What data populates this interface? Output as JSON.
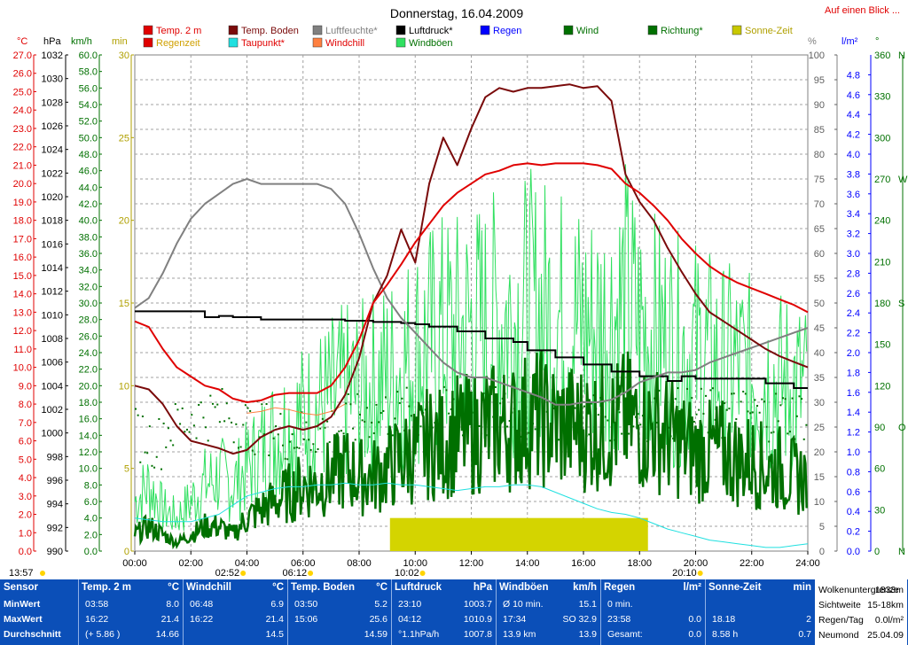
{
  "page": {
    "title": "Donnerstag, 16.04.2009",
    "link": "Auf einen Blick ..."
  },
  "legend": [
    {
      "label": "Temp. 2 m",
      "color": "#e00000",
      "text_color": "#e00000"
    },
    {
      "label": "Temp. Boden",
      "color": "#7a0a0a",
      "text_color": "#7a0a0a"
    },
    {
      "label": "Luftfeuchte*",
      "color": "#808080",
      "text_color": "#808080"
    },
    {
      "label": "Luftdruck*",
      "color": "#000000",
      "text_color": "#000000"
    },
    {
      "label": "Regen",
      "color": "#0000ff",
      "text_color": "#0000ff"
    },
    {
      "label": "Wind",
      "color": "#007000",
      "text_color": "#007000"
    },
    {
      "label": "Richtung*",
      "color": "#007000",
      "text_color": "#007000"
    },
    {
      "label": "Sonne-Zeit",
      "color": "#c8c800",
      "text_color": "#b0a000"
    },
    {
      "label": "Regenzeit",
      "color": "#e00000",
      "text_color": "#d0a000"
    },
    {
      "label": "Taupunkt*",
      "color": "#20e0e0",
      "text_color": "#e00000"
    },
    {
      "label": "Windchill",
      "color": "#ff8040",
      "text_color": "#e00000"
    },
    {
      "label": "Windböen",
      "color": "#30e060",
      "text_color": "#007000"
    }
  ],
  "axis_units": {
    "temp": "°C",
    "press": "hPa",
    "wind": "km/h",
    "min": "min",
    "pct": "%",
    "rain": "l/m²",
    "dir": "°"
  },
  "chart_data": {
    "type": "line",
    "x_tick_labels": [
      "00:00",
      "02:00",
      "04:00",
      "06:00",
      "08:00",
      "10:00",
      "12:00",
      "14:00",
      "16:00",
      "18:00",
      "20:00",
      "22:00",
      "24:00"
    ],
    "x_hours": [
      0,
      0.5,
      1,
      1.5,
      2,
      2.5,
      3,
      3.5,
      4,
      4.5,
      5,
      5.5,
      6,
      6.5,
      7,
      7.5,
      8,
      8.5,
      9,
      9.5,
      10,
      10.5,
      11,
      11.5,
      12,
      12.5,
      13,
      13.5,
      14,
      14.5,
      15,
      15.5,
      16,
      16.5,
      17,
      17.5,
      18,
      18.5,
      19,
      19.5,
      20,
      20.5,
      21,
      21.5,
      22,
      22.5,
      23,
      23.5,
      24
    ],
    "axes": {
      "temp_c": {
        "min": 0,
        "max": 27,
        "ticks": [
          "27.0",
          "26.0",
          "25.0",
          "24.0",
          "23.0",
          "22.0",
          "21.0",
          "20.0",
          "19.0",
          "18.0",
          "17.0",
          "16.0",
          "15.0",
          "14.0",
          "13.0",
          "12.0",
          "11.0",
          "10.0",
          "9.0",
          "8.0",
          "7.0",
          "6.0",
          "5.0",
          "4.0",
          "3.0",
          "2.0",
          "1.0",
          "0.0"
        ]
      },
      "pressure_hpa": {
        "min": 990,
        "max": 1032,
        "ticks": [
          "1032",
          "1030",
          "1028",
          "1026",
          "1024",
          "1022",
          "1020",
          "1018",
          "1016",
          "1014",
          "1012",
          "1010",
          "1008",
          "1006",
          "1004",
          "1002",
          "1000",
          "998",
          "996",
          "994",
          "992",
          "990"
        ]
      },
      "wind_kmh": {
        "min": 0,
        "max": 60,
        "ticks": [
          "60.0",
          "58.0",
          "56.0",
          "54.0",
          "52.0",
          "50.0",
          "48.0",
          "46.0",
          "44.0",
          "42.0",
          "40.0",
          "38.0",
          "36.0",
          "34.0",
          "32.0",
          "30.0",
          "28.0",
          "26.0",
          "24.0",
          "22.0",
          "20.0",
          "18.0",
          "16.0",
          "14.0",
          "12.0",
          "10.0",
          "8.0",
          "6.0",
          "4.0",
          "2.0",
          "0.0"
        ]
      },
      "minutes": {
        "min": 0,
        "max": 30,
        "ticks": [
          "30",
          "25",
          "20",
          "15",
          "10",
          "5",
          "0"
        ]
      },
      "humidity_pct": {
        "min": 0,
        "max": 100,
        "ticks": [
          "100",
          "95",
          "90",
          "85",
          "80",
          "75",
          "70",
          "65",
          "60",
          "55",
          "50",
          "45",
          "40",
          "35",
          "30",
          "25",
          "20",
          "15",
          "10",
          "5",
          "0"
        ]
      },
      "rain_lm2": {
        "min": 0,
        "max": 5,
        "ticks": [
          "4.8",
          "4.6",
          "4.4",
          "4.2",
          "4.0",
          "3.8",
          "3.6",
          "3.4",
          "3.2",
          "3.0",
          "2.8",
          "2.6",
          "2.4",
          "2.2",
          "2.0",
          "1.8",
          "1.6",
          "1.4",
          "1.2",
          "1.0",
          "0.8",
          "0.6",
          "0.4",
          "0.2",
          "0.0"
        ]
      },
      "direction_deg": {
        "min": 0,
        "max": 360,
        "ticks": [
          "360",
          "330",
          "300",
          "270",
          "240",
          "210",
          "180",
          "150",
          "120",
          "90",
          "60",
          "30",
          "0"
        ],
        "compass": [
          "N",
          "",
          "",
          "W",
          "",
          "",
          "S",
          "",
          "",
          "O",
          "",
          "",
          "N"
        ]
      }
    },
    "series": [
      {
        "name": "Temp. 2 m",
        "axis": "temp_c",
        "values": [
          12.5,
          12.2,
          11.0,
          10.0,
          9.5,
          9.0,
          8.8,
          8.3,
          8.1,
          8.2,
          8.5,
          8.6,
          8.6,
          8.6,
          9.0,
          10.0,
          11.5,
          13.5,
          14.5,
          15.6,
          16.8,
          17.8,
          18.8,
          19.5,
          20.0,
          20.5,
          20.7,
          21.0,
          21.1,
          21.0,
          21.1,
          21.1,
          21.1,
          21.0,
          20.8,
          20.0,
          19.5,
          18.8,
          18.0,
          17.0,
          16.2,
          15.5,
          15.0,
          14.6,
          14.3,
          14.0,
          13.7,
          13.4,
          13.0
        ]
      },
      {
        "name": "Temp. Boden",
        "axis": "temp_c",
        "values": [
          9.0,
          8.8,
          8.0,
          6.8,
          6.0,
          5.8,
          5.6,
          5.3,
          5.5,
          6.2,
          6.6,
          6.8,
          6.6,
          6.8,
          7.3,
          8.5,
          10.5,
          13.5,
          15.0,
          17.5,
          15.7,
          20.0,
          22.5,
          21.0,
          23.0,
          24.7,
          25.2,
          25.0,
          25.2,
          25.2,
          25.3,
          25.4,
          25.2,
          25.3,
          24.5,
          20.5,
          19.0,
          18.0,
          16.5,
          15.2,
          14.0,
          13.0,
          12.5,
          12.0,
          11.5,
          11.0,
          10.6,
          10.3,
          10.0
        ]
      },
      {
        "name": "Luftfeuchte*",
        "axis": "humidity_pct",
        "values": [
          49,
          51,
          56,
          62,
          67,
          70,
          72,
          74,
          75,
          74,
          74,
          74,
          74,
          74,
          73,
          70,
          64,
          57,
          51,
          47,
          44,
          41,
          38,
          36,
          35,
          35,
          34,
          33,
          32,
          31,
          29.5,
          29.5,
          30,
          30,
          30.5,
          32,
          34,
          35,
          36,
          36,
          36.5,
          38,
          39,
          40,
          41,
          42,
          43,
          44,
          45
        ]
      },
      {
        "name": "Luftdruck*",
        "axis": "pressure_hpa",
        "values": [
          1010.3,
          1010.3,
          1010.3,
          1010.3,
          1010.3,
          1009.8,
          1009.9,
          1009.8,
          1009.8,
          1009.6,
          1009.6,
          1009.6,
          1009.6,
          1009.6,
          1009.6,
          1009.5,
          1009.5,
          1009.4,
          1009.4,
          1009.3,
          1009.2,
          1009.0,
          1009.0,
          1008.6,
          1008.6,
          1008.0,
          1008.0,
          1007.7,
          1007.0,
          1007.0,
          1006.4,
          1006.4,
          1005.8,
          1005.8,
          1005.2,
          1005.2,
          1004.8,
          1004.8,
          1004.4,
          1004.8,
          1004.6,
          1004.6,
          1004.6,
          1004.6,
          1004.6,
          1004.2,
          1004.2,
          1003.8,
          1003.8
        ]
      },
      {
        "name": "Taupunkt*",
        "axis": "temp_c",
        "values": [
          1.8,
          1.7,
          1.6,
          1.6,
          1.6,
          1.8,
          2.0,
          2.5,
          3.0,
          3.2,
          3.4,
          3.5,
          3.5,
          3.6,
          3.6,
          3.7,
          3.6,
          3.6,
          3.7,
          3.6,
          3.6,
          3.5,
          3.4,
          3.3,
          3.4,
          3.5,
          3.5,
          3.6,
          3.6,
          3.5,
          3.2,
          2.9,
          2.6,
          2.3,
          2.1,
          2.0,
          1.8,
          1.5,
          1.2,
          1.0,
          0.8,
          0.6,
          0.5,
          0.4,
          0.3,
          0.2,
          0.2,
          0.3,
          0.4
        ]
      },
      {
        "name": "Windchill",
        "axis": "temp_c",
        "values": [
          null,
          null,
          null,
          null,
          null,
          null,
          null,
          null,
          7.5,
          7.6,
          7.8,
          7.7,
          7.5,
          7.4,
          7.6,
          8.0,
          null,
          null,
          null,
          null,
          null,
          null,
          null,
          null,
          null,
          null,
          null,
          null,
          null,
          null,
          null,
          null,
          null,
          null,
          null,
          null,
          null,
          null,
          null,
          null,
          null,
          null,
          null,
          null,
          null,
          null,
          null,
          null,
          null
        ]
      },
      {
        "name": "Wind",
        "axis": "wind_kmh",
        "values": [
          2,
          3,
          2,
          1,
          2,
          3,
          3,
          2,
          4,
          5,
          6,
          7,
          8,
          8,
          9,
          10,
          9,
          9,
          10,
          11,
          12,
          13,
          13,
          14,
          14,
          15,
          15,
          15,
          16,
          16,
          15,
          15,
          15,
          15,
          15,
          16,
          15,
          15,
          14,
          13,
          12,
          12,
          12,
          11,
          11,
          10,
          10,
          9,
          9
        ]
      },
      {
        "name": "Windböen",
        "axis": "wind_kmh",
        "values": [
          6,
          8,
          5,
          4,
          6,
          8,
          9,
          8,
          10,
          12,
          14,
          15,
          16,
          17,
          18,
          19,
          19,
          20,
          21,
          22,
          24,
          25,
          26,
          26,
          27,
          27,
          28,
          28,
          29,
          29,
          28,
          28,
          27,
          27,
          28,
          30,
          27,
          26,
          25,
          24,
          24,
          23,
          22,
          22,
          21,
          21,
          20,
          20,
          19
        ]
      },
      {
        "name": "Richtung*",
        "axis": "direction_deg",
        "values": [
          85,
          80,
          90,
          95,
          100,
          100,
          100,
          95,
          90,
          90,
          85,
          85,
          85,
          90,
          90,
          95,
          100,
          100,
          100,
          100,
          100,
          100,
          100,
          100,
          100,
          100,
          100,
          100,
          100,
          100,
          100,
          100,
          100,
          100,
          100,
          100,
          100,
          100,
          100,
          100,
          100,
          100,
          100,
          100,
          100,
          100,
          100,
          100,
          100
        ]
      }
    ],
    "sun_bar": {
      "name": "Sonne-Zeit",
      "axis": "minutes",
      "start_hour": 9.1,
      "end_hour": 18.3,
      "value": 2
    },
    "event_markers": [
      {
        "label": "13:57"
      },
      {
        "label": "02:52"
      },
      {
        "label": "06:12"
      },
      {
        "label": "10:02"
      },
      {
        "label": "20:10"
      }
    ]
  },
  "stats": {
    "row_labels": [
      "Sensor",
      "MinWert",
      "MaxWert",
      "Durchschnitt"
    ],
    "columns": [
      {
        "title": "Temp. 2 m",
        "unit": "°C",
        "rows": [
          [
            "03:58",
            "8.0"
          ],
          [
            "16:22",
            "21.4"
          ],
          [
            "(+ 5.86 )",
            "14.66"
          ]
        ]
      },
      {
        "title": "Windchill",
        "unit": "°C",
        "rows": [
          [
            "06:48",
            "6.9"
          ],
          [
            "16:22",
            "21.4"
          ],
          [
            "",
            "14.5"
          ]
        ]
      },
      {
        "title": "Temp. Boden",
        "unit": "°C",
        "rows": [
          [
            "03:50",
            "5.2"
          ],
          [
            "15:06",
            "25.6"
          ],
          [
            "",
            "14.59"
          ]
        ]
      },
      {
        "title": "Luftdruck",
        "unit": "hPa",
        "rows": [
          [
            "23:10",
            "1003.7"
          ],
          [
            "04:12",
            "1010.9"
          ],
          [
            "°1.1hPa/h",
            "1007.8"
          ]
        ]
      },
      {
        "title": "Windböen",
        "unit": "km/h",
        "rows": [
          [
            "Ø 10 min.",
            "15.1"
          ],
          [
            "17:34",
            "SO 32.9"
          ],
          [
            "13.9 km",
            "13.9"
          ]
        ]
      },
      {
        "title": "Regen",
        "unit": "l/m²",
        "rows": [
          [
            "0 min.",
            ""
          ],
          [
            "23:58",
            "0.0"
          ],
          [
            "Gesamt:",
            "0.0"
          ]
        ]
      },
      {
        "title": "Sonne-Zeit",
        "unit": "min",
        "rows": [
          [
            "",
            ""
          ],
          [
            "18.18",
            "2"
          ],
          [
            "8.58 h",
            "0.7"
          ]
        ]
      }
    ],
    "extra": [
      {
        "label": "Wolkenuntergrenze",
        "value": "1833m"
      },
      {
        "label": "Sichtweite",
        "value": "15-18km"
      },
      {
        "label": "Regen/Tag",
        "value": "0.0l/m²"
      },
      {
        "label": "Neumond",
        "value": "25.04.09"
      }
    ]
  }
}
